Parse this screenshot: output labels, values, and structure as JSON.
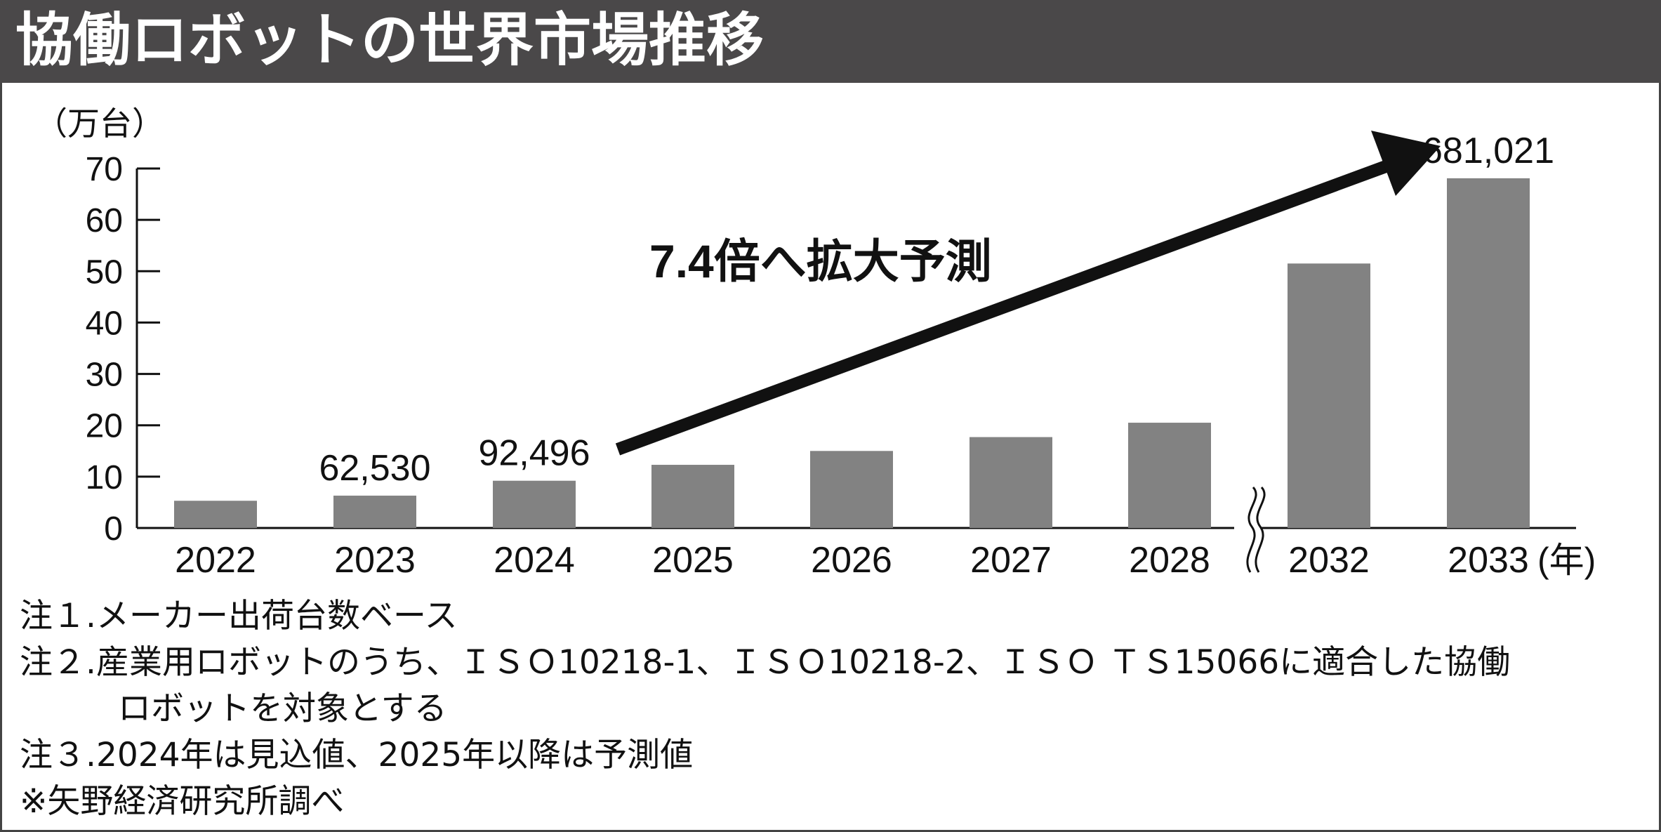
{
  "title": "協働ロボットの世界市場推移",
  "chart_data": {
    "type": "bar",
    "unit_label": "（万台）",
    "x_unit_label": "(年)",
    "categories": [
      "2022",
      "2023",
      "2024",
      "2025",
      "2026",
      "2027",
      "2028",
      "2032",
      "2033"
    ],
    "values": [
      5.3,
      6.3,
      9.2,
      12.3,
      15.0,
      17.7,
      20.5,
      51.5,
      68.1
    ],
    "data_labels": [
      "",
      "62,530",
      "92,496",
      "",
      "",
      "",
      "",
      "",
      "681,021"
    ],
    "y_ticks": [
      0,
      10,
      20,
      30,
      40,
      50,
      60,
      70
    ],
    "ylim": [
      0,
      70
    ],
    "axis_break_between": [
      "2028",
      "2032"
    ],
    "annotation": "7.4倍へ拡大予測",
    "bar_color": "#828282",
    "arrow_color": "#111111",
    "grid": false
  },
  "notes": [
    "注１.メーカー出荷台数ベース",
    "注２.産業用ロボットのうち、ＩＳＯ10218-1、ＩＳＯ10218-2、ＩＳＯ ＴＳ15066に適合した協働",
    "ロボットを対象とする",
    "注３.2024年は見込値、2025年以降は予測値",
    "※矢野経済研究所調べ"
  ],
  "colors": {
    "header_bg": "#4a4849",
    "title_text": "#ffffff",
    "border": "#444444"
  }
}
